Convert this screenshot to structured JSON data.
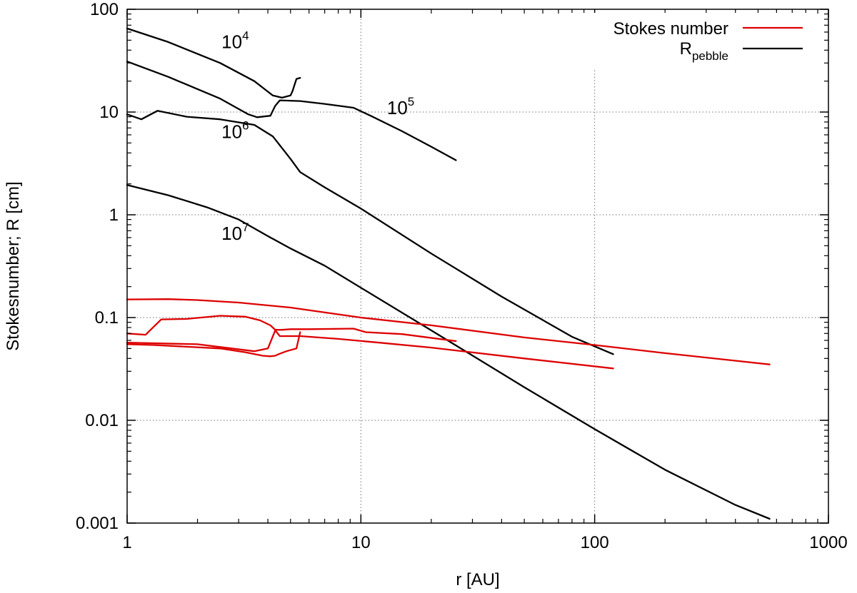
{
  "chart_data": {
    "type": "line",
    "xlabel": "r [AU]",
    "ylabel": "Stokesnumber; R [cm]",
    "xscale": "log",
    "yscale": "log",
    "xlim": [
      1,
      1000
    ],
    "ylim": [
      0.001,
      100
    ],
    "grid": true,
    "xticks": [
      1,
      10,
      100,
      1000
    ],
    "xtick_labels": [
      "1",
      "10",
      "100",
      "1000"
    ],
    "yticks": [
      0.001,
      0.01,
      0.1,
      1,
      10,
      100
    ],
    "ytick_labels": [
      "0.001",
      "0.01",
      "0.1",
      "1",
      "10",
      "100"
    ],
    "legend": {
      "position": "top-right",
      "entries": [
        {
          "label": "Stokes number",
          "color": "#dd0000"
        },
        {
          "label_base": "R",
          "label_sub": "pebble",
          "color": "#000000"
        }
      ]
    },
    "annotations": [
      {
        "base": "10",
        "exp": "4",
        "x": 2.9,
        "y": 42
      },
      {
        "base": "10",
        "exp": "5",
        "x": 14.8,
        "y": 9.5
      },
      {
        "base": "10",
        "exp": "6",
        "x": 2.9,
        "y": 5.6
      },
      {
        "base": "10",
        "exp": "7",
        "x": 2.9,
        "y": 0.57
      }
    ],
    "series": [
      {
        "kind": "R_pebble",
        "color": "#000000",
        "x": [
          1.0,
          1.5,
          2.5,
          3.5,
          4.2,
          4.6,
          5.0,
          5.1,
          5.3,
          5.5
        ],
        "y": [
          65,
          48,
          30,
          20,
          14.5,
          13.8,
          14.5,
          16.0,
          21.0,
          21.5
        ]
      },
      {
        "kind": "R_pebble",
        "color": "#000000",
        "x": [
          1.0,
          1.5,
          2.5,
          3.3,
          3.6,
          4.1,
          4.3,
          4.5,
          5.5,
          7,
          9.3,
          11,
          15,
          20,
          25.5
        ],
        "y": [
          31,
          22,
          13.5,
          9.5,
          8.9,
          9.2,
          11.5,
          13.0,
          12.8,
          12.0,
          11.0,
          9.2,
          6.5,
          4.6,
          3.4
        ]
      },
      {
        "kind": "R_pebble",
        "color": "#000000",
        "x": [
          1.0,
          1.15,
          1.35,
          1.8,
          2.5,
          3.5,
          4.2,
          5.0,
          5.5,
          7,
          10,
          20,
          40,
          80,
          120
        ],
        "y": [
          9.5,
          8.5,
          10.3,
          9.0,
          8.5,
          7.5,
          5.8,
          3.5,
          2.6,
          1.85,
          1.15,
          0.42,
          0.16,
          0.065,
          0.044
        ]
      },
      {
        "kind": "R_pebble",
        "color": "#000000",
        "x": [
          1.0,
          1.5,
          2.2,
          3.0,
          4.0,
          5.0,
          7,
          10,
          20,
          50,
          100,
          200,
          400,
          560
        ],
        "y": [
          1.95,
          1.55,
          1.18,
          0.9,
          0.62,
          0.47,
          0.32,
          0.195,
          0.075,
          0.021,
          0.0082,
          0.0033,
          0.0015,
          0.0011
        ]
      },
      {
        "kind": "Stokes",
        "color": "#dd0000",
        "x": [
          1.0,
          1.5,
          2,
          3,
          5,
          10,
          20,
          50,
          100,
          200,
          400,
          560
        ],
        "y": [
          0.15,
          0.151,
          0.148,
          0.14,
          0.125,
          0.1,
          0.084,
          0.064,
          0.054,
          0.045,
          0.038,
          0.035
        ]
      },
      {
        "kind": "Stokes",
        "color": "#dd0000",
        "x": [
          1.0,
          1.3,
          1.8,
          2.5,
          3.2,
          3.8,
          4.1,
          4.3,
          4.45,
          4.8,
          5.3,
          5.5
        ],
        "y": [
          0.055,
          0.054,
          0.052,
          0.05,
          0.046,
          0.0425,
          0.042,
          0.0425,
          0.044,
          0.047,
          0.05,
          0.072
        ]
      },
      {
        "kind": "Stokes",
        "color": "#dd0000",
        "x": [
          1.0,
          1.2,
          1.4,
          1.8,
          2.5,
          3.2,
          3.7,
          4.1,
          4.3,
          4.6,
          5,
          6,
          9.3,
          10.5,
          15,
          25.5
        ],
        "y": [
          0.07,
          0.068,
          0.096,
          0.097,
          0.104,
          0.102,
          0.094,
          0.084,
          0.076,
          0.076,
          0.077,
          0.077,
          0.078,
          0.072,
          0.069,
          0.059
        ]
      },
      {
        "kind": "Stokes",
        "color": "#dd0000",
        "x": [
          1.0,
          2,
          3.5,
          4.0,
          4.3,
          4.5,
          5.5,
          8,
          12,
          20,
          50,
          120
        ],
        "y": [
          0.057,
          0.055,
          0.047,
          0.05,
          0.075,
          0.066,
          0.066,
          0.062,
          0.057,
          0.051,
          0.04,
          0.032
        ]
      }
    ]
  }
}
